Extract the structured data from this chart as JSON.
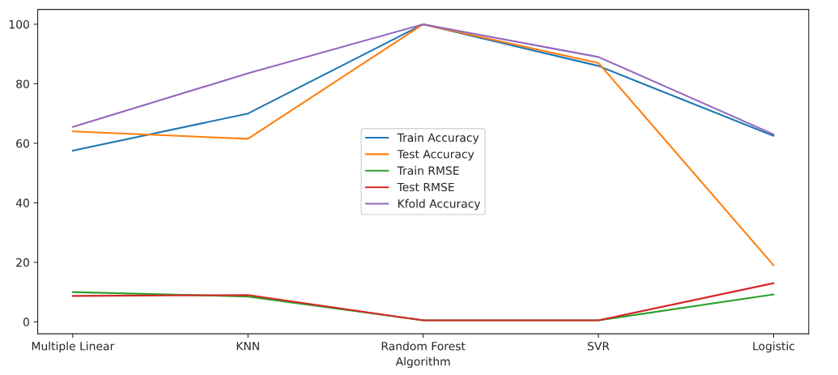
{
  "chart_data": {
    "type": "line",
    "xlabel": "Algorithm",
    "categories": [
      "Multiple Linear",
      "KNN",
      "Random Forest",
      "SVR",
      "Logistic"
    ],
    "series": [
      {
        "name": "Train Accuracy",
        "color": "#1f77b4",
        "values": [
          57.5,
          70,
          100,
          86,
          62.5
        ]
      },
      {
        "name": "Test Accuracy",
        "color": "#ff7f0e",
        "values": [
          64,
          61.5,
          100,
          87,
          19
        ]
      },
      {
        "name": "Train RMSE",
        "color": "#2ca02c",
        "values": [
          10,
          8.5,
          0.5,
          0.5,
          9.2
        ]
      },
      {
        "name": "Test RMSE",
        "color": "#d62728",
        "values": [
          8.7,
          9,
          0.5,
          0.5,
          13
        ]
      },
      {
        "name": "Kfold Accuracy",
        "color": "#9467bd",
        "values": [
          65.5,
          83.5,
          100,
          89,
          63
        ]
      }
    ],
    "ylim": [
      -4,
      105
    ],
    "yticks": [
      0,
      20,
      40,
      60,
      80,
      100
    ],
    "grid": false,
    "legend": "center",
    "marker": "none",
    "line_style": "solid"
  }
}
